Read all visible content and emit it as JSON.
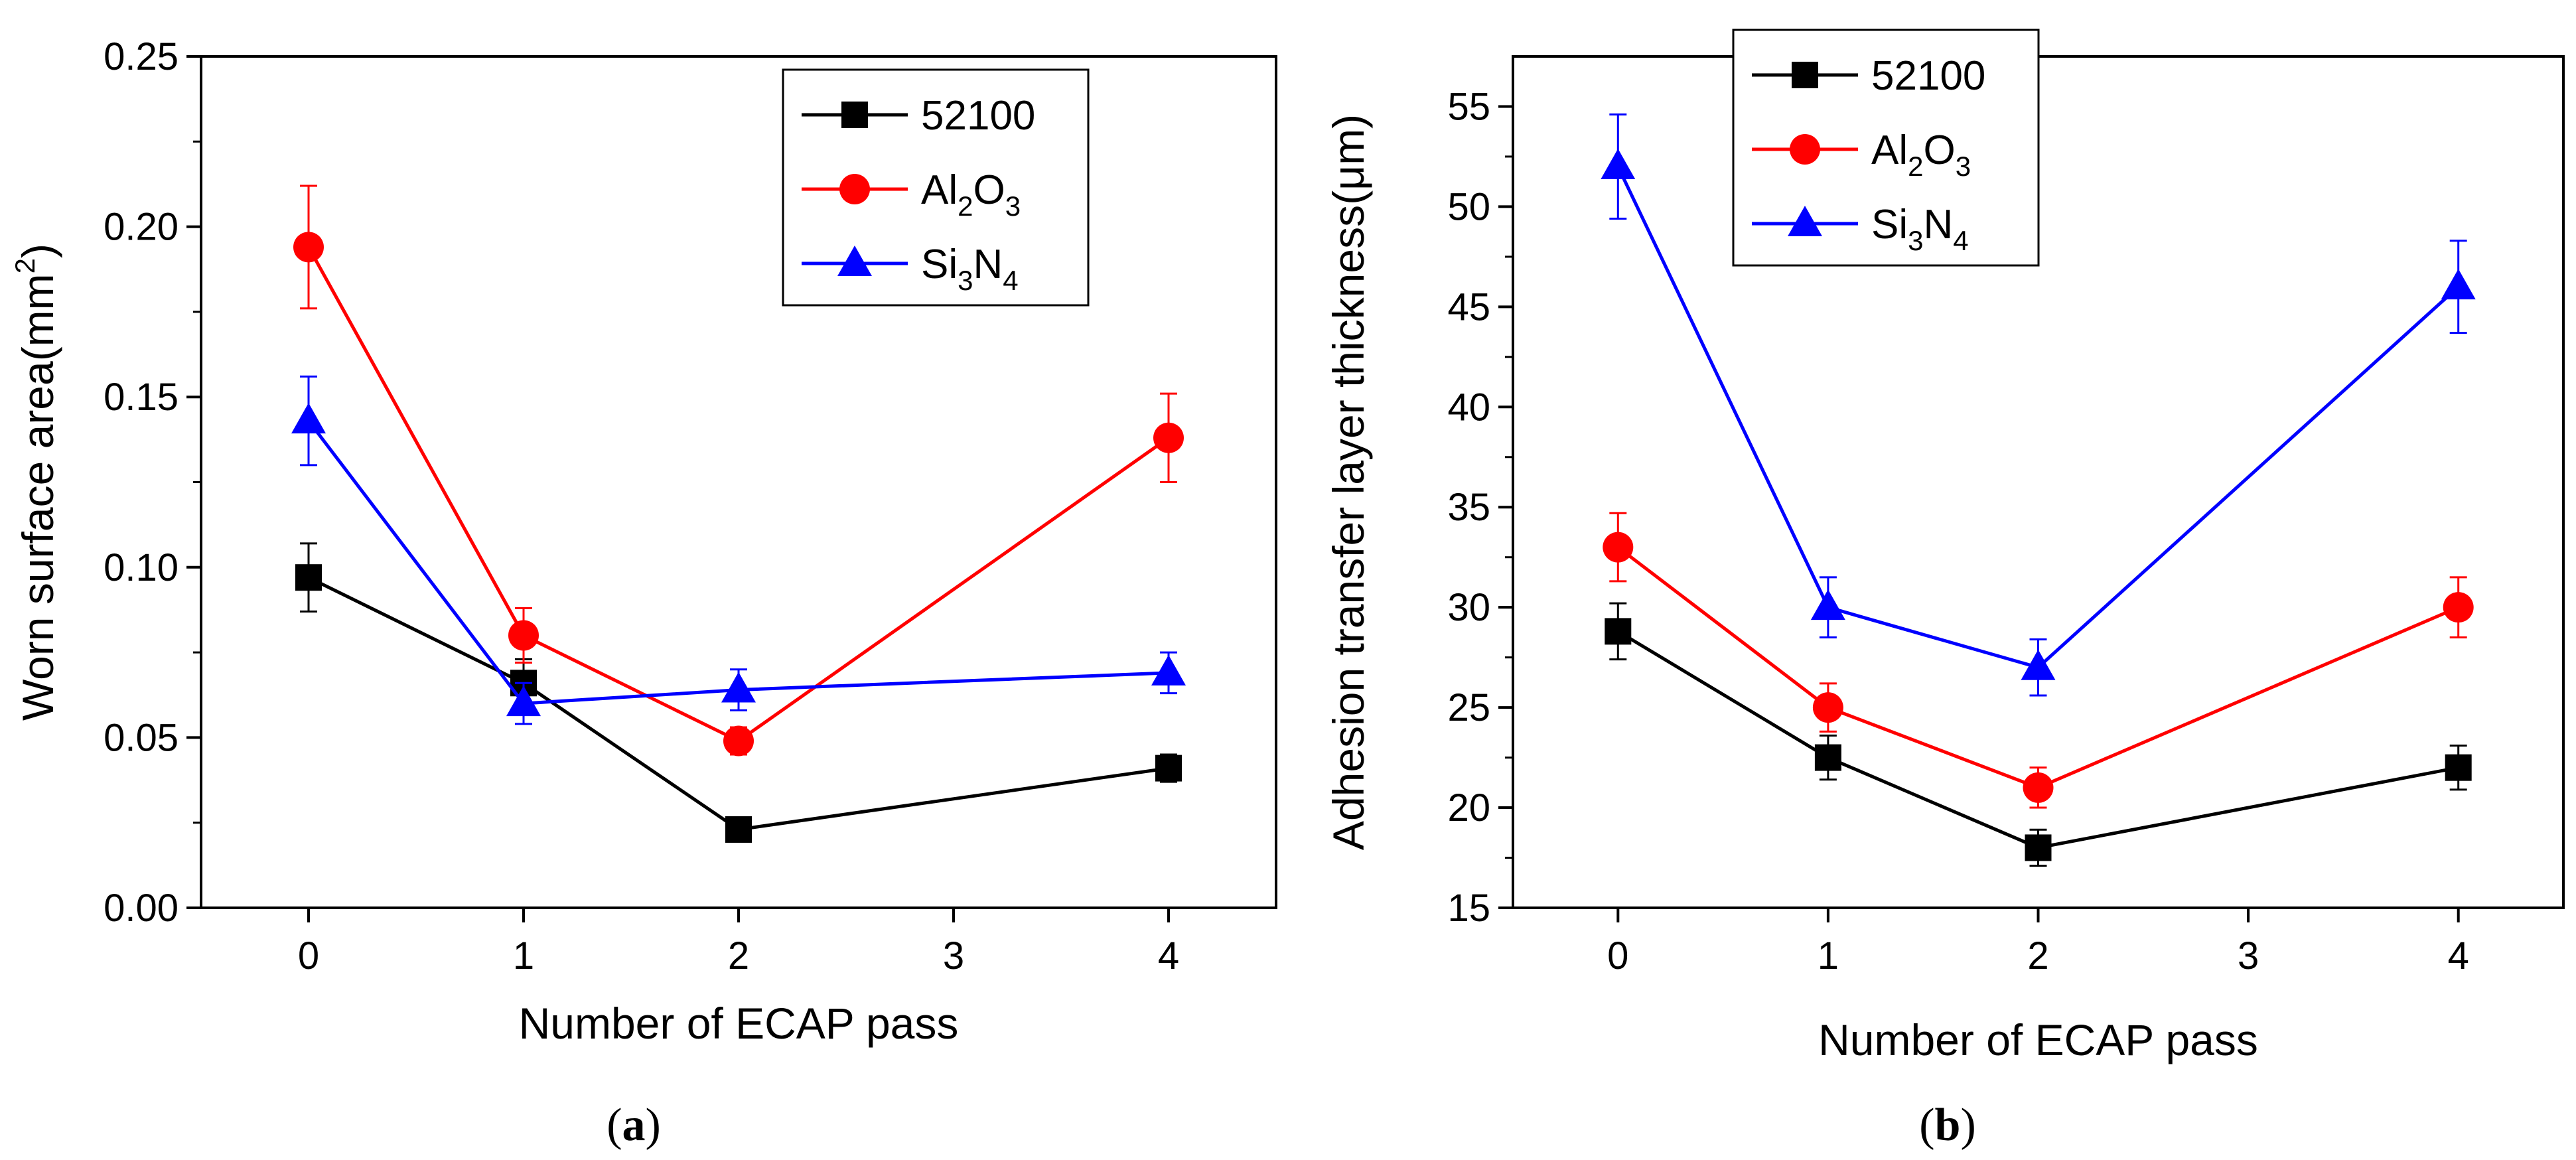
{
  "figure": {
    "panel_labels": [
      {
        "open": "(",
        "letter": "a",
        "close": ")"
      },
      {
        "open": "(",
        "letter": "b",
        "close": ")"
      }
    ]
  },
  "chart_data": [
    {
      "type": "line",
      "panel": "a",
      "title": "",
      "xlabel": "Number of ECAP pass",
      "ylabel": {
        "text": "Worn surface area",
        "unit_open": "(mm",
        "unit_sup": "2",
        "unit_close": ")"
      },
      "xlim": [
        -0.5,
        4.5
      ],
      "ylim": [
        0,
        0.25
      ],
      "xticks": [
        0,
        1,
        2,
        3,
        4
      ],
      "xtick_labels": [
        "0",
        "1",
        "2",
        "3",
        "4"
      ],
      "yticks": [
        0,
        0.05,
        0.1,
        0.15,
        0.2,
        0.25
      ],
      "ytick_labels": [
        "0.00",
        "0.05",
        "0.10",
        "0.15",
        "0.20",
        "0.25"
      ],
      "x": [
        0,
        1,
        2,
        4
      ],
      "grid": false,
      "legend_position": "top-right",
      "series": [
        {
          "name": "52100",
          "label_parts": [
            {
              "t": "52100"
            }
          ],
          "color": "#000000",
          "marker": "square",
          "values": [
            0.097,
            0.066,
            0.023,
            0.041
          ],
          "errors": [
            0.01,
            0.007,
            0.002,
            0.004
          ]
        },
        {
          "name": "Al2O3",
          "label_parts": [
            {
              "t": "Al"
            },
            {
              "t": "2",
              "sub": true
            },
            {
              "t": "O"
            },
            {
              "t": "3",
              "sub": true
            }
          ],
          "color": "#ff0000",
          "marker": "circle",
          "values": [
            0.194,
            0.08,
            0.049,
            0.138
          ],
          "errors": [
            0.018,
            0.008,
            0.004,
            0.013
          ]
        },
        {
          "name": "Si3N4",
          "label_parts": [
            {
              "t": "Si"
            },
            {
              "t": "3",
              "sub": true
            },
            {
              "t": "N"
            },
            {
              "t": "4",
              "sub": true
            }
          ],
          "color": "#0000ff",
          "marker": "triangle",
          "values": [
            0.143,
            0.06,
            0.064,
            0.069
          ],
          "errors": [
            0.013,
            0.006,
            0.006,
            0.006
          ]
        }
      ]
    },
    {
      "type": "line",
      "panel": "b",
      "title": "",
      "xlabel": "Number of ECAP pass",
      "ylabel": {
        "text": "Adhesion transfer layer thickness",
        "unit_open": "(μm)",
        "unit_sup": "",
        "unit_close": ""
      },
      "xlim": [
        -0.5,
        4.5
      ],
      "ylim": [
        15,
        57.5
      ],
      "xticks": [
        0,
        1,
        2,
        3,
        4
      ],
      "xtick_labels": [
        "0",
        "1",
        "2",
        "3",
        "4"
      ],
      "yticks": [
        15,
        20,
        25,
        30,
        35,
        40,
        45,
        50,
        55
      ],
      "ytick_labels": [
        "15",
        "20",
        "25",
        "30",
        "35",
        "40",
        "45",
        "50",
        "55"
      ],
      "x": [
        0,
        1,
        2,
        4
      ],
      "grid": false,
      "legend_position": "top-left",
      "series": [
        {
          "name": "52100",
          "label_parts": [
            {
              "t": "52100"
            }
          ],
          "color": "#000000",
          "marker": "square",
          "values": [
            28.8,
            22.5,
            18.0,
            22.0
          ],
          "errors": [
            1.4,
            1.1,
            0.9,
            1.1
          ]
        },
        {
          "name": "Al2O3",
          "label_parts": [
            {
              "t": "Al"
            },
            {
              "t": "2",
              "sub": true
            },
            {
              "t": "O"
            },
            {
              "t": "3",
              "sub": true
            }
          ],
          "color": "#ff0000",
          "marker": "circle",
          "values": [
            33.0,
            25.0,
            21.0,
            30.0
          ],
          "errors": [
            1.7,
            1.2,
            1.0,
            1.5
          ]
        },
        {
          "name": "Si3N4",
          "label_parts": [
            {
              "t": "Si"
            },
            {
              "t": "3",
              "sub": true
            },
            {
              "t": "N"
            },
            {
              "t": "4",
              "sub": true
            }
          ],
          "color": "#0000ff",
          "marker": "triangle",
          "values": [
            52.0,
            30.0,
            27.0,
            46.0
          ],
          "errors": [
            2.6,
            1.5,
            1.4,
            2.3
          ]
        }
      ]
    }
  ]
}
